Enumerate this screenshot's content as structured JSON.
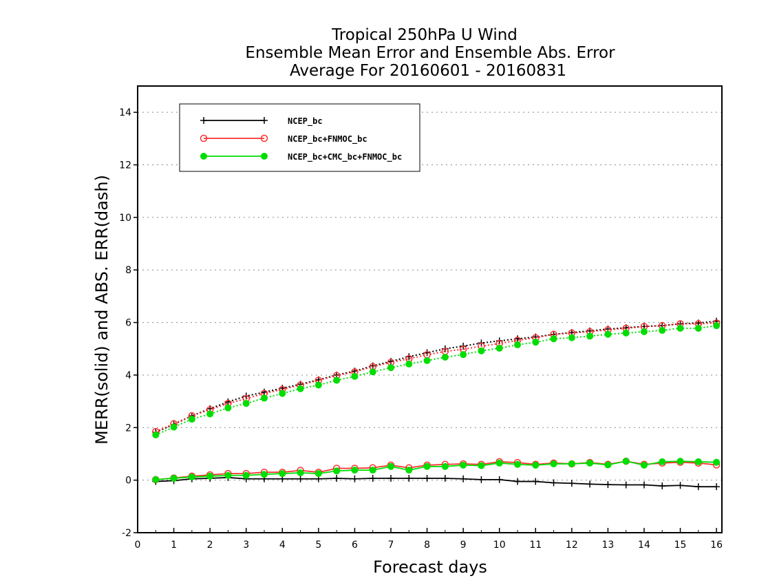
{
  "chart_data": {
    "type": "line",
    "title": [
      "Tropical 250hPa U Wind",
      "Ensemble Mean Error and Ensemble Abs. Error",
      "Average For 20160601 - 20160831"
    ],
    "xlabel": "Forecast days",
    "ylabel": "MERR(solid) and ABS. ERR(dash)",
    "xlim": [
      0,
      16.15
    ],
    "ylim": [
      -2,
      15
    ],
    "xticks": [
      0,
      1,
      2,
      3,
      4,
      5,
      6,
      7,
      8,
      9,
      10,
      11,
      12,
      13,
      14,
      15,
      16
    ],
    "xtick_labels": [
      "0",
      "1",
      "2",
      "3",
      "4",
      "5",
      "6",
      "7",
      "8",
      "9",
      "10",
      "11",
      "12",
      "13",
      "14",
      "15",
      "16"
    ],
    "yticks": [
      -2,
      0,
      2,
      4,
      6,
      8,
      10,
      12,
      14
    ],
    "ytick_labels": [
      "-2",
      "0",
      "2",
      "4",
      "6",
      "8",
      "10",
      "12",
      "14"
    ],
    "grid": "horizontal dotted",
    "legend_position": "top-left",
    "x": [
      0.5,
      1.0,
      1.5,
      2.0,
      2.5,
      3.0,
      3.5,
      4.0,
      4.5,
      5.0,
      5.5,
      6.0,
      6.5,
      7.0,
      7.5,
      8.0,
      8.5,
      9.0,
      9.5,
      10.0,
      10.5,
      11.0,
      11.5,
      12.0,
      12.5,
      13.0,
      13.5,
      14.0,
      14.5,
      15.0,
      15.5,
      16.0
    ],
    "series": [
      {
        "name": "NCEP_bc",
        "color": "#000000",
        "marker": "plus",
        "merr": [
          -0.05,
          -0.02,
          0.05,
          0.07,
          0.1,
          0.05,
          0.05,
          0.05,
          0.05,
          0.05,
          0.07,
          0.05,
          0.07,
          0.07,
          0.07,
          0.07,
          0.07,
          0.05,
          0.02,
          0.02,
          -0.05,
          -0.05,
          -0.1,
          -0.12,
          -0.15,
          -0.17,
          -0.18,
          -0.18,
          -0.22,
          -0.2,
          -0.25,
          -0.25
        ],
        "abs_err": [
          1.82,
          2.12,
          2.45,
          2.72,
          2.98,
          3.2,
          3.35,
          3.5,
          3.65,
          3.82,
          4.0,
          4.15,
          4.35,
          4.52,
          4.7,
          4.85,
          5.0,
          5.1,
          5.22,
          5.3,
          5.38,
          5.45,
          5.55,
          5.62,
          5.68,
          5.75,
          5.8,
          5.85,
          5.88,
          5.95,
          5.98,
          6.05
        ]
      },
      {
        "name": "NCEP_bc+FNMOC_bc",
        "color": "#ff3030",
        "marker": "open-circle",
        "merr": [
          0.02,
          0.08,
          0.15,
          0.2,
          0.25,
          0.25,
          0.3,
          0.3,
          0.37,
          0.3,
          0.45,
          0.45,
          0.47,
          0.57,
          0.47,
          0.57,
          0.6,
          0.62,
          0.6,
          0.7,
          0.67,
          0.6,
          0.65,
          0.62,
          0.67,
          0.6,
          0.72,
          0.6,
          0.65,
          0.68,
          0.65,
          0.58
        ],
        "abs_err": [
          1.85,
          2.15,
          2.45,
          2.68,
          2.92,
          3.1,
          3.3,
          3.45,
          3.62,
          3.8,
          3.98,
          4.12,
          4.32,
          4.48,
          4.62,
          4.77,
          4.9,
          4.98,
          5.1,
          5.2,
          5.32,
          5.42,
          5.55,
          5.6,
          5.65,
          5.72,
          5.78,
          5.85,
          5.88,
          5.95,
          5.95,
          5.98
        ]
      },
      {
        "name": "NCEP_bc+CMC_bc+FNMOC_bc",
        "color": "#00dd00",
        "marker": "filled-circle",
        "merr": [
          0.02,
          0.07,
          0.12,
          0.15,
          0.18,
          0.18,
          0.22,
          0.25,
          0.28,
          0.25,
          0.35,
          0.38,
          0.38,
          0.52,
          0.38,
          0.52,
          0.52,
          0.57,
          0.55,
          0.65,
          0.6,
          0.57,
          0.62,
          0.62,
          0.65,
          0.58,
          0.72,
          0.57,
          0.7,
          0.72,
          0.7,
          0.68
        ],
        "abs_err": [
          1.72,
          2.02,
          2.32,
          2.52,
          2.75,
          2.92,
          3.12,
          3.3,
          3.48,
          3.62,
          3.8,
          3.95,
          4.12,
          4.28,
          4.42,
          4.55,
          4.68,
          4.78,
          4.92,
          5.02,
          5.15,
          5.25,
          5.38,
          5.42,
          5.48,
          5.55,
          5.6,
          5.65,
          5.7,
          5.78,
          5.78,
          5.88
        ]
      }
    ]
  }
}
